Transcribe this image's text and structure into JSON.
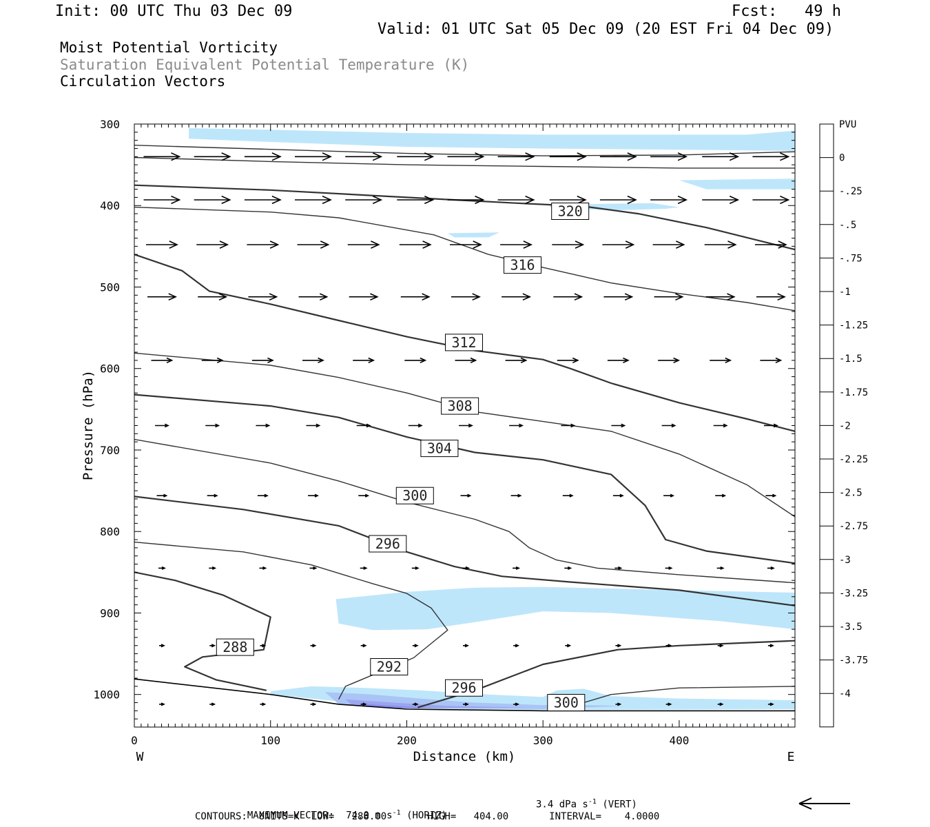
{
  "header": {
    "init": "Init: 00 UTC Thu 03 Dec 09",
    "fcst": "Fcst:   49 h",
    "valid": "Valid: 01 UTC Sat 05 Dec 09 (20 EST Fri 04 Dec 09)"
  },
  "fields": {
    "line1": "Moist Potential Vorticity",
    "line2": "Saturation Equivalent Potential Temperature (K)",
    "line3": "Circulation Vectors"
  },
  "footer": {
    "max_vector_label": "MAXIMUM VECTOR:",
    "max_horiz": "74.0 m s",
    "horiz_tag": "(HORIZ)",
    "max_vert": "3.4 dPa s",
    "vert_tag": "(VERT)",
    "exponent": "-1",
    "contours": "CONTOURS:  UNITS=K  LOW=   288.00       HIGH=   404.00       INTERVAL=    4.0000"
  },
  "chart_data": {
    "type": "cross-section contour",
    "xlabel": "Distance (km)",
    "ylabel": "Pressure (hPa)",
    "xlim": [
      0,
      485
    ],
    "ylim": [
      1040,
      300
    ],
    "x_ticks": [
      "0",
      "100",
      "200",
      "300",
      "400"
    ],
    "y_ticks": [
      "300",
      "400",
      "500",
      "600",
      "700",
      "800",
      "900",
      "1000"
    ],
    "x_tick_values": [
      0,
      100,
      200,
      300,
      400
    ],
    "y_tick_values": [
      300,
      400,
      500,
      600,
      700,
      800,
      900,
      1000
    ],
    "direction_left": "W",
    "direction_right": "E",
    "colorbar": {
      "unit": "PVU",
      "labels": [
        "0",
        "-.25",
        "-.5",
        "-.75",
        "-1",
        "-1.25",
        "-1.5",
        "-1.75",
        "-2",
        "-2.25",
        "-2.5",
        "-2.75",
        "-3",
        "-3.25",
        "-3.5",
        "-3.75",
        "-4"
      ],
      "colors": [
        "#ffffff",
        "#ffffff",
        "#bee6fb",
        "#b8daf9",
        "#afcaf6",
        "#a6bbf3",
        "#9caaf1",
        "#929bee",
        "#888aeb",
        "#7e7ae8",
        "#746ae6",
        "#6a5ae3",
        "#5f49e0",
        "#5439dd",
        "#4428db",
        "#2f18d9",
        "#1a08d7",
        "#0000ff"
      ]
    },
    "contour_labels": [
      {
        "value": "320",
        "x": 320,
        "p": 407
      },
      {
        "value": "316",
        "x": 285,
        "p": 473
      },
      {
        "value": "312",
        "x": 242,
        "p": 568
      },
      {
        "value": "308",
        "x": 239,
        "p": 646
      },
      {
        "value": "304",
        "x": 224,
        "p": 698
      },
      {
        "value": "300",
        "x": 206,
        "p": 756
      },
      {
        "value": "296",
        "x": 186,
        "p": 815
      },
      {
        "value": "288",
        "x": 74,
        "p": 942
      },
      {
        "value": "292",
        "x": 187,
        "p": 966
      },
      {
        "value": "296",
        "x": 242,
        "p": 992
      },
      {
        "value": "300",
        "x": 317,
        "p": 1010
      }
    ],
    "contours": [
      {
        "value": 324,
        "points": [
          [
            0,
            326
          ],
          [
            100,
            331
          ],
          [
            200,
            336
          ],
          [
            300,
            339
          ],
          [
            400,
            338
          ],
          [
            485,
            334
          ]
        ]
      },
      {
        "value": 324,
        "points": [
          [
            0,
            341
          ],
          [
            100,
            346
          ],
          [
            200,
            350
          ],
          [
            300,
            352
          ],
          [
            400,
            354
          ],
          [
            485,
            354
          ]
        ]
      },
      {
        "value": 320,
        "points": [
          [
            0,
            375
          ],
          [
            100,
            381
          ],
          [
            200,
            390
          ],
          [
            280,
            397
          ],
          [
            330,
            401
          ],
          [
            370,
            410
          ],
          [
            420,
            427
          ],
          [
            485,
            454
          ]
        ]
      },
      {
        "value": 316,
        "points": [
          [
            0,
            402
          ],
          [
            100,
            408
          ],
          [
            150,
            415
          ],
          [
            220,
            436
          ],
          [
            260,
            460
          ],
          [
            300,
            476
          ],
          [
            350,
            495
          ],
          [
            400,
            508
          ],
          [
            450,
            519
          ],
          [
            485,
            529
          ]
        ]
      },
      {
        "value": 312,
        "points": [
          [
            0,
            460
          ],
          [
            35,
            480
          ],
          [
            55,
            505
          ],
          [
            100,
            521
          ],
          [
            150,
            541
          ],
          [
            200,
            561
          ],
          [
            250,
            578
          ],
          [
            300,
            589
          ],
          [
            320,
            600
          ],
          [
            350,
            618
          ],
          [
            400,
            642
          ],
          [
            450,
            662
          ],
          [
            485,
            677
          ]
        ]
      },
      {
        "value": 308,
        "points": [
          [
            0,
            581
          ],
          [
            100,
            596
          ],
          [
            150,
            611
          ],
          [
            200,
            630
          ],
          [
            250,
            653
          ],
          [
            300,
            665
          ],
          [
            350,
            677
          ],
          [
            400,
            705
          ],
          [
            450,
            743
          ],
          [
            485,
            782
          ]
        ]
      },
      {
        "value": 304,
        "points": [
          [
            0,
            632
          ],
          [
            100,
            646
          ],
          [
            150,
            660
          ],
          [
            200,
            684
          ],
          [
            250,
            703
          ],
          [
            300,
            712
          ],
          [
            350,
            730
          ],
          [
            375,
            768
          ],
          [
            390,
            810
          ],
          [
            420,
            824
          ],
          [
            485,
            839
          ]
        ]
      },
      {
        "value": 300,
        "points": [
          [
            0,
            687
          ],
          [
            100,
            716
          ],
          [
            150,
            738
          ],
          [
            200,
            764
          ],
          [
            250,
            785
          ],
          [
            275,
            800
          ],
          [
            290,
            820
          ],
          [
            310,
            835
          ],
          [
            340,
            845
          ],
          [
            400,
            853
          ],
          [
            485,
            863
          ]
        ]
      },
      {
        "value": 296,
        "points": [
          [
            0,
            757
          ],
          [
            80,
            773
          ],
          [
            150,
            793
          ],
          [
            200,
            825
          ],
          [
            235,
            843
          ],
          [
            270,
            855
          ],
          [
            320,
            862
          ],
          [
            400,
            872
          ],
          [
            485,
            891
          ]
        ]
      },
      {
        "value": 292,
        "points": [
          [
            0,
            813
          ],
          [
            80,
            825
          ],
          [
            130,
            841
          ],
          [
            175,
            864
          ],
          [
            200,
            876
          ],
          [
            218,
            894
          ],
          [
            230,
            921
          ],
          [
            205,
            955
          ],
          [
            155,
            990
          ],
          [
            150,
            1006
          ]
        ]
      },
      {
        "value": 288,
        "points": [
          [
            0,
            850
          ],
          [
            30,
            860
          ],
          [
            65,
            878
          ],
          [
            100,
            905
          ],
          [
            95,
            945
          ],
          [
            50,
            954
          ],
          [
            37,
            966
          ],
          [
            60,
            982
          ],
          [
            97,
            995
          ]
        ]
      },
      {
        "value": 296,
        "points": [
          [
            208,
            1016
          ],
          [
            250,
            995
          ],
          [
            300,
            963
          ],
          [
            355,
            945
          ],
          [
            400,
            940
          ],
          [
            485,
            934
          ]
        ]
      },
      {
        "value": 300,
        "points": [
          [
            330,
            1010
          ],
          [
            350,
            1000
          ],
          [
            400,
            992
          ],
          [
            485,
            990
          ]
        ]
      }
    ],
    "ground_surface": [
      [
        0,
        981
      ],
      [
        100,
        1000
      ],
      [
        150,
        1012
      ],
      [
        200,
        1018
      ],
      [
        300,
        1020
      ],
      [
        485,
        1020
      ]
    ],
    "pv_regions": [
      {
        "level": "-.25 to -.5",
        "points": [
          [
            40,
            305
          ],
          [
            100,
            307
          ],
          [
            200,
            311
          ],
          [
            300,
            313
          ],
          [
            450,
            313
          ],
          [
            485,
            308
          ],
          [
            485,
            333
          ],
          [
            430,
            332
          ],
          [
            300,
            330
          ],
          [
            200,
            328
          ],
          [
            100,
            322
          ],
          [
            40,
            318
          ]
        ]
      },
      {
        "level": "-.25 to -.5",
        "points": [
          [
            400,
            369
          ],
          [
            485,
            367
          ],
          [
            485,
            380
          ],
          [
            420,
            380
          ]
        ]
      },
      {
        "level": "-.25 to -.5",
        "points": [
          [
            305,
            398
          ],
          [
            340,
            398
          ],
          [
            380,
            397
          ],
          [
            400,
            402
          ],
          [
            390,
            404
          ],
          [
            350,
            406
          ],
          [
            305,
            402
          ]
        ]
      },
      {
        "level": "-.25 to -.5",
        "points": [
          [
            230,
            434
          ],
          [
            268,
            433
          ],
          [
            260,
            439
          ],
          [
            235,
            439
          ]
        ]
      },
      {
        "level": "-.25 to -.5",
        "points": [
          [
            148,
            883
          ],
          [
            200,
            874
          ],
          [
            250,
            869
          ],
          [
            300,
            868
          ],
          [
            400,
            872
          ],
          [
            485,
            875
          ],
          [
            485,
            920
          ],
          [
            430,
            910
          ],
          [
            350,
            900
          ],
          [
            300,
            898
          ],
          [
            255,
            910
          ],
          [
            215,
            920
          ],
          [
            175,
            921
          ],
          [
            150,
            913
          ]
        ]
      },
      {
        "level": "-.25 to -.5",
        "points": [
          [
            100,
            996
          ],
          [
            130,
            990
          ],
          [
            170,
            992
          ],
          [
            210,
            995
          ],
          [
            260,
            1000
          ],
          [
            300,
            1003
          ],
          [
            310,
            995
          ],
          [
            330,
            993
          ],
          [
            350,
            1002
          ],
          [
            400,
            1005
          ],
          [
            485,
            1007
          ],
          [
            485,
            1018
          ],
          [
            300,
            1019
          ],
          [
            200,
            1017
          ],
          [
            100,
            1000
          ]
        ]
      },
      {
        "level": "-.5 to -1",
        "points": [
          [
            140,
            997
          ],
          [
            175,
            1000
          ],
          [
            210,
            1005
          ],
          [
            250,
            1010
          ],
          [
            300,
            1013
          ],
          [
            330,
            1013
          ],
          [
            360,
            1014
          ],
          [
            300,
            1018
          ],
          [
            200,
            1017
          ],
          [
            150,
            1012
          ]
        ]
      },
      {
        "level": "-1 to -1.5",
        "points": [
          [
            155,
            1006
          ],
          [
            190,
            1010
          ],
          [
            230,
            1014
          ],
          [
            290,
            1016
          ],
          [
            200,
            1017
          ],
          [
            160,
            1013
          ]
        ]
      },
      {
        "level": "-1.5 to -2",
        "points": [
          [
            165,
            1011
          ],
          [
            200,
            1015
          ],
          [
            220,
            1016
          ],
          [
            190,
            1017
          ],
          [
            168,
            1014
          ]
        ]
      }
    ],
    "vector_grid": {
      "x": [
        20,
        57,
        94,
        131,
        168,
        206,
        243,
        280,
        318,
        355,
        392,
        430,
        467
      ],
      "rows": [
        {
          "p": 340,
          "u": 52
        },
        {
          "p": 393,
          "u": 52
        },
        {
          "p": 448,
          "u": 45
        },
        {
          "p": 512,
          "u": 41
        },
        {
          "p": 590,
          "u": 30
        },
        {
          "p": 670,
          "u": 19
        },
        {
          "p": 756,
          "u": 14
        },
        {
          "p": 845,
          "u": 9
        },
        {
          "p": 940,
          "u": 7
        },
        {
          "p": 1012,
          "u": 7
        }
      ]
    }
  }
}
